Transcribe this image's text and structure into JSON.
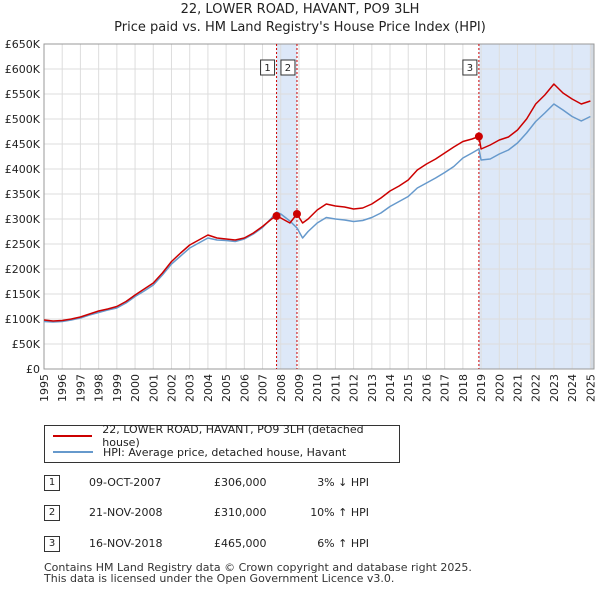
{
  "title": {
    "line1": "22, LOWER ROAD, HAVANT, PO9 3LH",
    "line2": "Price paid vs. HM Land Registry's House Price Index (HPI)"
  },
  "chart_data": {
    "type": "line",
    "title": "Price paid vs. HM Land Registry's House Price Index (HPI)",
    "xlim": [
      1995,
      2025.2
    ],
    "ylim": [
      0,
      650000
    ],
    "y_ticks": [
      0,
      50000,
      100000,
      150000,
      200000,
      250000,
      300000,
      350000,
      400000,
      450000,
      500000,
      550000,
      600000,
      650000
    ],
    "y_tick_labels": [
      "£0",
      "£50K",
      "£100K",
      "£150K",
      "£200K",
      "£250K",
      "£300K",
      "£350K",
      "£400K",
      "£450K",
      "£500K",
      "£550K",
      "£600K",
      "£650K"
    ],
    "x_ticks": [
      1995,
      1996,
      1997,
      1998,
      1999,
      2000,
      2001,
      2002,
      2003,
      2004,
      2005,
      2006,
      2007,
      2008,
      2009,
      2010,
      2011,
      2012,
      2013,
      2014,
      2015,
      2016,
      2017,
      2018,
      2019,
      2020,
      2021,
      2022,
      2023,
      2024,
      2025
    ],
    "series": [
      {
        "name": "22, LOWER ROAD, HAVANT, PO9 3LH (detached house)",
        "color": "#cc0000",
        "x": [
          1995.0,
          1995.5,
          1996.0,
          1996.5,
          1997.0,
          1997.5,
          1998.0,
          1998.5,
          1999.0,
          1999.5,
          2000.0,
          2000.5,
          2001.0,
          2001.5,
          2002.0,
          2002.5,
          2003.0,
          2003.5,
          2004.0,
          2004.5,
          2005.0,
          2005.5,
          2006.0,
          2006.5,
          2007.0,
          2007.5,
          2007.77,
          2008.0,
          2008.5,
          2008.89,
          2009.2,
          2009.5,
          2010.0,
          2010.5,
          2011.0,
          2011.5,
          2012.0,
          2012.5,
          2013.0,
          2013.5,
          2014.0,
          2014.5,
          2015.0,
          2015.5,
          2016.0,
          2016.5,
          2017.0,
          2017.5,
          2018.0,
          2018.5,
          2018.88,
          2019.0,
          2019.5,
          2020.0,
          2020.5,
          2021.0,
          2021.5,
          2022.0,
          2022.5,
          2023.0,
          2023.5,
          2024.0,
          2024.5,
          2025.0
        ],
        "values": [
          98000,
          96000,
          97000,
          100000,
          104000,
          110000,
          116000,
          120000,
          125000,
          135000,
          148000,
          160000,
          172000,
          192000,
          215000,
          232000,
          248000,
          258000,
          268000,
          262000,
          260000,
          258000,
          262000,
          272000,
          285000,
          300000,
          306000,
          302000,
          292000,
          310000,
          292000,
          300000,
          318000,
          330000,
          326000,
          324000,
          320000,
          322000,
          330000,
          342000,
          356000,
          366000,
          378000,
          398000,
          410000,
          420000,
          432000,
          444000,
          455000,
          460000,
          465000,
          440000,
          448000,
          458000,
          464000,
          478000,
          500000,
          530000,
          548000,
          570000,
          552000,
          540000,
          530000,
          536000
        ]
      },
      {
        "name": "HPI: Average price, detached house, Havant",
        "color": "#6699cc",
        "x": [
          1995.0,
          1995.5,
          1996.0,
          1996.5,
          1997.0,
          1997.5,
          1998.0,
          1998.5,
          1999.0,
          1999.5,
          2000.0,
          2000.5,
          2001.0,
          2001.5,
          2002.0,
          2002.5,
          2003.0,
          2003.5,
          2004.0,
          2004.5,
          2005.0,
          2005.5,
          2006.0,
          2006.5,
          2007.0,
          2007.5,
          2007.77,
          2008.0,
          2008.5,
          2008.89,
          2009.2,
          2009.5,
          2010.0,
          2010.5,
          2011.0,
          2011.5,
          2012.0,
          2012.5,
          2013.0,
          2013.5,
          2014.0,
          2014.5,
          2015.0,
          2015.5,
          2016.0,
          2016.5,
          2017.0,
          2017.5,
          2018.0,
          2018.5,
          2018.88,
          2019.0,
          2019.5,
          2020.0,
          2020.5,
          2021.0,
          2021.5,
          2022.0,
          2022.5,
          2023.0,
          2023.5,
          2024.0,
          2024.5,
          2025.0
        ],
        "values": [
          95000,
          94000,
          95000,
          98000,
          102000,
          108000,
          113000,
          118000,
          122000,
          132000,
          145000,
          156000,
          168000,
          188000,
          210000,
          226000,
          242000,
          252000,
          262000,
          258000,
          257000,
          255000,
          260000,
          270000,
          283000,
          302000,
          314000,
          310000,
          296000,
          282000,
          262000,
          275000,
          292000,
          303000,
          300000,
          298000,
          295000,
          297000,
          303000,
          312000,
          325000,
          335000,
          345000,
          362000,
          372000,
          382000,
          393000,
          405000,
          422000,
          432000,
          440000,
          418000,
          420000,
          430000,
          438000,
          452000,
          472000,
          495000,
          512000,
          530000,
          518000,
          505000,
          496000,
          505000
        ]
      }
    ],
    "sales": [
      {
        "label": "1",
        "x": 2007.77,
        "value": 306000
      },
      {
        "label": "2",
        "x": 2008.89,
        "value": 310000
      },
      {
        "label": "3",
        "x": 2018.88,
        "value": 465000
      }
    ]
  },
  "legend": {
    "property": "22, LOWER ROAD, HAVANT, PO9 3LH (detached house)",
    "hpi": "HPI: Average price, detached house, Havant"
  },
  "transactions": [
    {
      "num": "1",
      "date": "09-OCT-2007",
      "price": "£306,000",
      "hpi": "3% ↓ HPI"
    },
    {
      "num": "2",
      "date": "21-NOV-2008",
      "price": "£310,000",
      "hpi": "10% ↑ HPI"
    },
    {
      "num": "3",
      "date": "16-NOV-2018",
      "price": "£465,000",
      "hpi": "6% ↑ HPI"
    }
  ],
  "footer": {
    "line1": "Contains HM Land Registry data © Crown copyright and database right 2025.",
    "line2": "This data is licensed under the Open Government Licence v3.0."
  },
  "colors": {
    "property": "#cc0000",
    "hpi": "#6699cc",
    "band": "#dde8f8",
    "grid": "#dddddd"
  }
}
